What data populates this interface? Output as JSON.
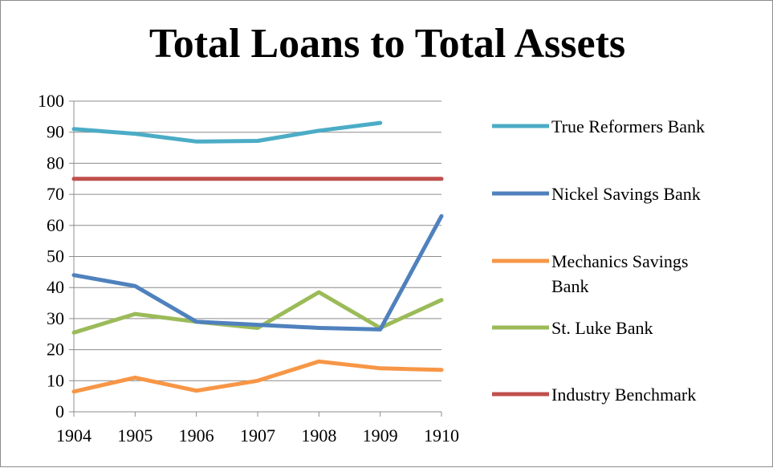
{
  "chart_data": {
    "type": "line",
    "title": "Total Loans to Total Assets",
    "xlabel": "",
    "ylabel": "",
    "categories": [
      "1904",
      "1905",
      "1906",
      "1907",
      "1908",
      "1909",
      "1910"
    ],
    "ylim": [
      0,
      100
    ],
    "yticks": [
      0,
      10,
      20,
      30,
      40,
      50,
      60,
      70,
      80,
      90,
      100
    ],
    "grid": true,
    "legend_position": "right",
    "series": [
      {
        "name": "True Reformers Bank",
        "color": "#4BACC6",
        "values": [
          91,
          89.5,
          87,
          87.2,
          90.5,
          93,
          null
        ]
      },
      {
        "name": "Nickel Savings Bank",
        "color": "#4F81BD",
        "values": [
          44,
          40.5,
          29,
          28,
          27,
          26.5,
          63
        ]
      },
      {
        "name": "Mechanics Savings Bank",
        "color": "#F79646",
        "values": [
          6.5,
          11,
          6.8,
          10,
          16.2,
          14,
          13.5
        ]
      },
      {
        "name": "St. Luke Bank",
        "color": "#9BBB59",
        "values": [
          25.5,
          31.5,
          29,
          27,
          38.5,
          27,
          36
        ]
      },
      {
        "name": "Industry Benchmark",
        "color": "#C0504D",
        "values": [
          75,
          75,
          75,
          75,
          75,
          75,
          75
        ]
      }
    ]
  }
}
